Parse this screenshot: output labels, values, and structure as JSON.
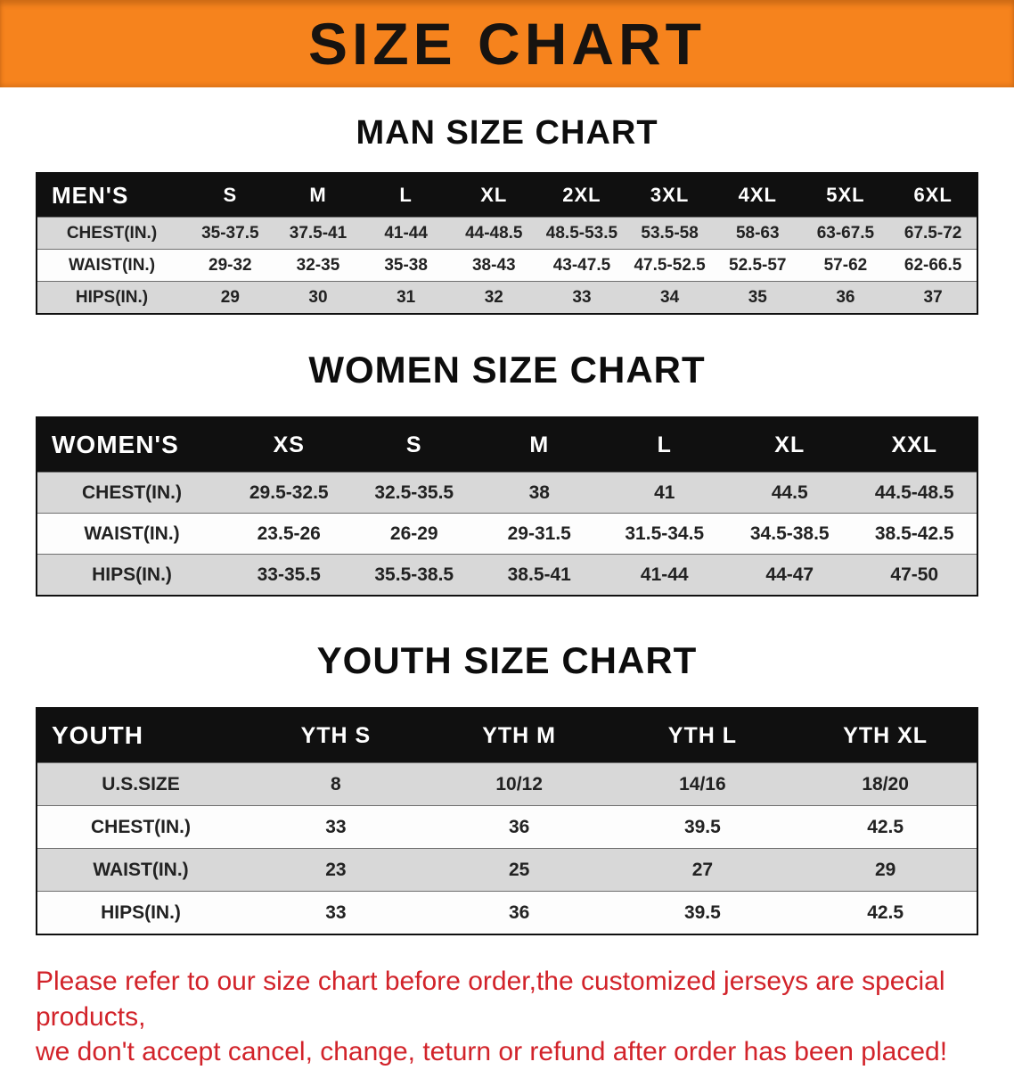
{
  "banner": {
    "title": "SIZE CHART",
    "background_color": "#f6831d",
    "title_color": "#171310"
  },
  "sections": [
    {
      "heading": "MAN SIZE CHART",
      "table": {
        "header": [
          "MEN'S",
          "S",
          "M",
          "L",
          "XL",
          "2XL",
          "3XL",
          "4XL",
          "5XL",
          "6XL"
        ],
        "rows": [
          [
            "CHEST(IN.)",
            "35-37.5",
            "37.5-41",
            "41-44",
            "44-48.5",
            "48.5-53.5",
            "53.5-58",
            "58-63",
            "63-67.5",
            "67.5-72"
          ],
          [
            "WAIST(IN.)",
            "29-32",
            "32-35",
            "35-38",
            "38-43",
            "43-47.5",
            "47.5-52.5",
            "52.5-57",
            "57-62",
            "62-66.5"
          ],
          [
            "HIPS(IN.)",
            "29",
            "30",
            "31",
            "32",
            "33",
            "34",
            "35",
            "36",
            "37"
          ]
        ]
      }
    },
    {
      "heading": "WOMEN SIZE CHART",
      "table": {
        "header": [
          "WOMEN'S",
          "XS",
          "S",
          "M",
          "L",
          "XL",
          "XXL"
        ],
        "rows": [
          [
            "CHEST(IN.)",
            "29.5-32.5",
            "32.5-35.5",
            "38",
            "41",
            "44.5",
            "44.5-48.5"
          ],
          [
            "WAIST(IN.)",
            "23.5-26",
            "26-29",
            "29-31.5",
            "31.5-34.5",
            "34.5-38.5",
            "38.5-42.5"
          ],
          [
            "HIPS(IN.)",
            "33-35.5",
            "35.5-38.5",
            "38.5-41",
            "41-44",
            "44-47",
            "47-50"
          ]
        ]
      }
    },
    {
      "heading": "YOUTH SIZE CHART",
      "table": {
        "header": [
          "YOUTH",
          "YTH S",
          "YTH M",
          "YTH L",
          "YTH XL"
        ],
        "rows": [
          [
            "U.S.SIZE",
            "8",
            "10/12",
            "14/16",
            "18/20"
          ],
          [
            "CHEST(IN.)",
            "33",
            "36",
            "39.5",
            "42.5"
          ],
          [
            "WAIST(IN.)",
            "23",
            "25",
            "27",
            "29"
          ],
          [
            "HIPS(IN.)",
            "33",
            "36",
            "39.5",
            "42.5"
          ]
        ]
      }
    }
  ],
  "colors": {
    "table_header_bg": "#101010",
    "table_header_text": "#ffffff",
    "stripe_gray": "#d8d8d8",
    "stripe_white": "#fdfdfd",
    "disclaimer_red": "#d2232a"
  },
  "disclaimer": {
    "line1": "Please refer to our size chart before order,the customized jerseys are special products,",
    "line2": "we don't accept cancel, change, teturn or refund after order has been placed!"
  }
}
